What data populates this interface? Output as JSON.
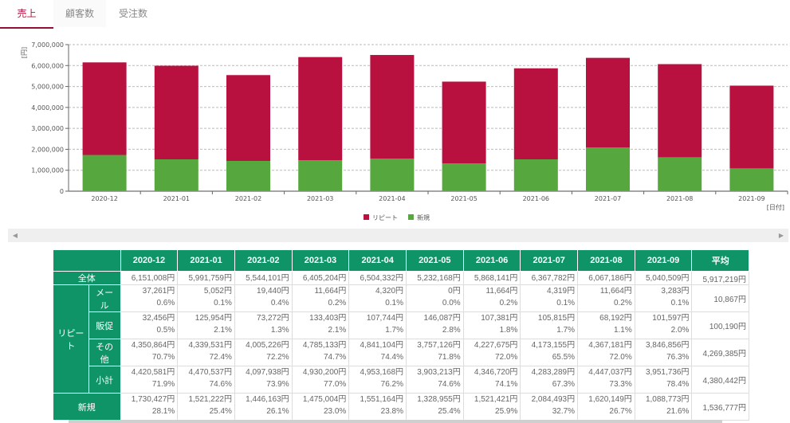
{
  "tabs": [
    {
      "label": "売上",
      "active": true
    },
    {
      "label": "顧客数",
      "active": false
    },
    {
      "label": "受注数",
      "active": false
    }
  ],
  "chart_data": {
    "type": "bar",
    "stacked": true,
    "categories": [
      "2020-12",
      "2021-01",
      "2021-02",
      "2021-03",
      "2021-04",
      "2021-05",
      "2021-06",
      "2021-07",
      "2021-08",
      "2021-09"
    ],
    "series": [
      {
        "name": "新規",
        "color": "#56a73d",
        "values": [
          1730427,
          1521222,
          1446163,
          1475004,
          1551164,
          1328955,
          1521421,
          2084493,
          1620149,
          1088773
        ]
      },
      {
        "name": "リピート",
        "color": "#b8103f",
        "values": [
          4420581,
          4470537,
          4097938,
          4930200,
          4953168,
          3903213,
          4346720,
          4283289,
          4447037,
          3951736
        ]
      }
    ],
    "legend_order": [
      "リピート",
      "新規"
    ],
    "legend_position": "bottom-right",
    "ylabel": "[円]",
    "xlabel": "[日付]",
    "ylim": [
      0,
      7000000
    ],
    "yticks": [
      "0",
      "1,000,000",
      "2,000,000",
      "3,000,000",
      "4,000,000",
      "5,000,000",
      "6,000,000",
      "7,000,000"
    ],
    "grid": true
  },
  "table": {
    "headers": [
      "2020-12",
      "2021-01",
      "2021-02",
      "2021-03",
      "2021-04",
      "2021-05",
      "2021-06",
      "2021-07",
      "2021-08",
      "2021-09",
      "平均"
    ],
    "total": {
      "label": "全体",
      "values": [
        "6,151,008円",
        "5,991,759円",
        "5,544,101円",
        "6,405,204円",
        "6,504,332円",
        "5,232,168円",
        "5,868,141円",
        "6,367,782円",
        "6,067,186円",
        "5,040,509円"
      ],
      "avg": "5,917,219円"
    },
    "repeat_label": "リピート",
    "repeat_rows": [
      {
        "label": "メール",
        "values": [
          "37,261円",
          "5,052円",
          "19,440円",
          "11,664円",
          "4,320円",
          "0円",
          "11,664円",
          "4,319円",
          "11,664円",
          "3,283円"
        ],
        "pcts": [
          "0.6%",
          "0.1%",
          "0.4%",
          "0.2%",
          "0.1%",
          "0.0%",
          "0.2%",
          "0.1%",
          "0.2%",
          "0.1%"
        ],
        "avg": "10,867円"
      },
      {
        "label": "販促",
        "values": [
          "32,456円",
          "125,954円",
          "73,272円",
          "133,403円",
          "107,744円",
          "146,087円",
          "107,381円",
          "105,815円",
          "68,192円",
          "101,597円"
        ],
        "pcts": [
          "0.5%",
          "2.1%",
          "1.3%",
          "2.1%",
          "1.7%",
          "2.8%",
          "1.8%",
          "1.7%",
          "1.1%",
          "2.0%"
        ],
        "avg": "100,190円"
      },
      {
        "label": "その他",
        "values": [
          "4,350,864円",
          "4,339,531円",
          "4,005,226円",
          "4,785,133円",
          "4,841,104円",
          "3,757,126円",
          "4,227,675円",
          "4,173,155円",
          "4,367,181円",
          "3,846,856円"
        ],
        "pcts": [
          "70.7%",
          "72.4%",
          "72.2%",
          "74.7%",
          "74.4%",
          "71.8%",
          "72.0%",
          "65.5%",
          "72.0%",
          "76.3%"
        ],
        "avg": "4,269,385円"
      },
      {
        "label": "小計",
        "values": [
          "4,420,581円",
          "4,470,537円",
          "4,097,938円",
          "4,930,200円",
          "4,953,168円",
          "3,903,213円",
          "4,346,720円",
          "4,283,289円",
          "4,447,037円",
          "3,951,736円"
        ],
        "pcts": [
          "71.9%",
          "74.6%",
          "73.9%",
          "77.0%",
          "76.2%",
          "74.6%",
          "74.1%",
          "67.3%",
          "73.3%",
          "78.4%"
        ],
        "avg": "4,380,442円"
      }
    ],
    "new_row": {
      "label": "新規",
      "values": [
        "1,730,427円",
        "1,521,222円",
        "1,446,163円",
        "1,475,004円",
        "1,551,164円",
        "1,328,955円",
        "1,521,421円",
        "2,084,493円",
        "1,620,149円",
        "1,088,773円"
      ],
      "pcts": [
        "28.1%",
        "25.4%",
        "26.1%",
        "23.0%",
        "23.8%",
        "25.4%",
        "25.9%",
        "32.7%",
        "26.7%",
        "21.6%"
      ],
      "avg": "1,536,777円"
    }
  },
  "scroll": {
    "left_icon": "◀",
    "right_icon": "▶"
  }
}
